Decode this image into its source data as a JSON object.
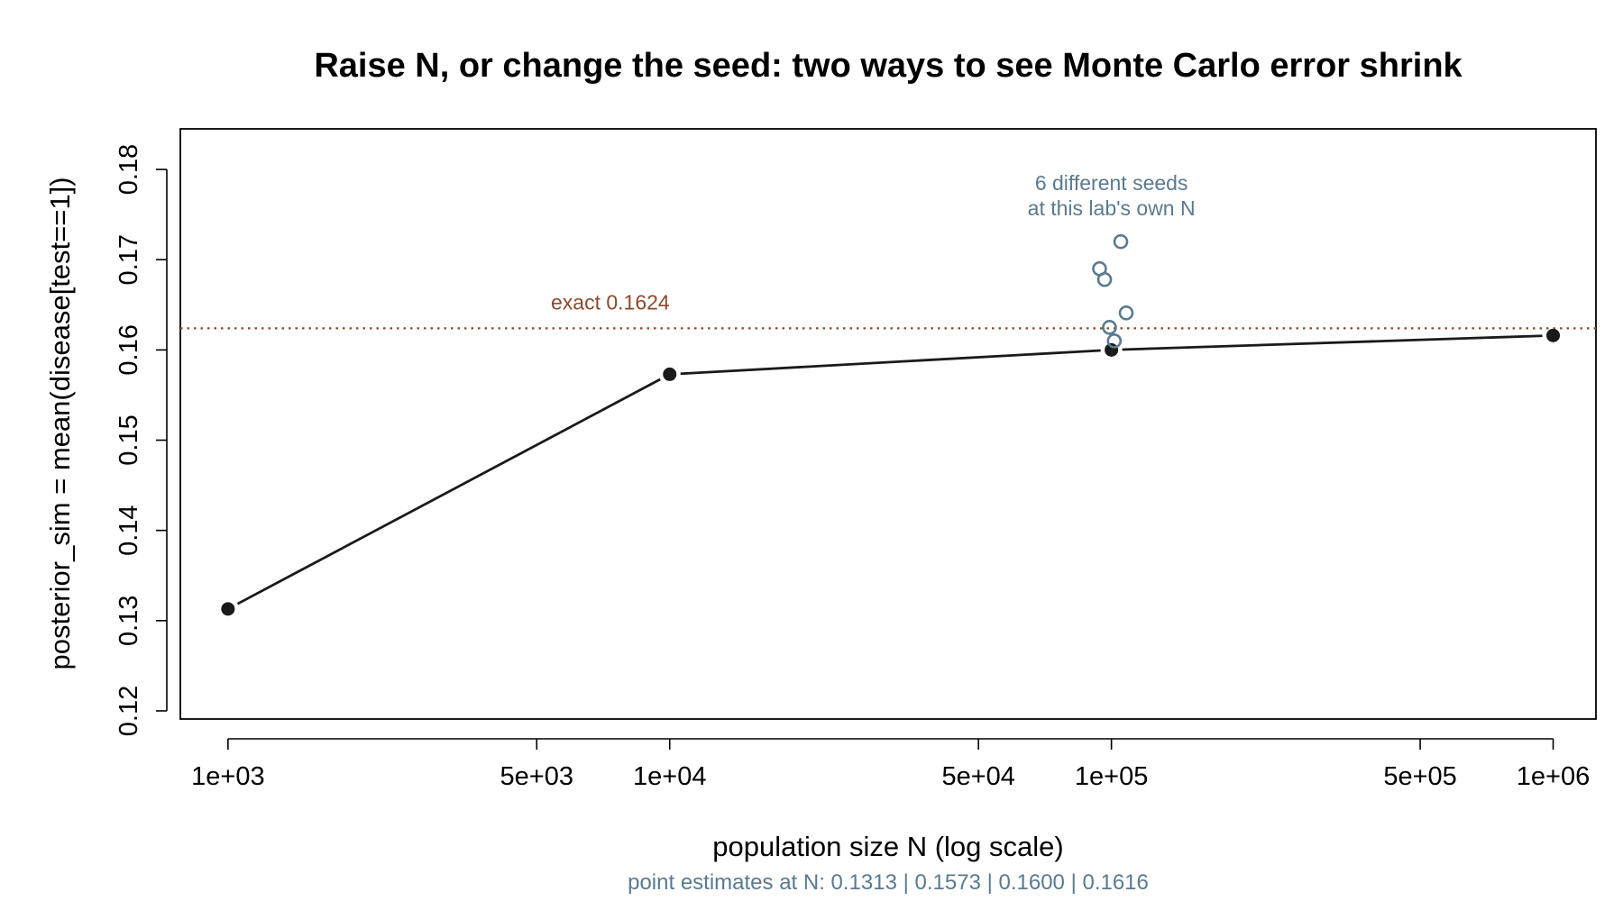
{
  "chart_data": {
    "type": "line",
    "title": "Raise N, or change the seed: two ways to see Monte Carlo error shrink",
    "xlabel": "population size N (log scale)",
    "ylabel": "posterior_sim = mean(disease[test==1])",
    "x_scale": "log",
    "xlim": [
      780,
      1250000
    ],
    "ylim": [
      0.1191,
      0.1845
    ],
    "x_ticks": [
      1000,
      5000,
      10000,
      50000,
      100000,
      500000,
      1000000
    ],
    "x_tick_labels": [
      "1e+03",
      "5e+03",
      "1e+04",
      "5e+04",
      "1e+05",
      "5e+05",
      "1e+06"
    ],
    "y_ticks": [
      0.12,
      0.13,
      0.14,
      0.15,
      0.16,
      0.17,
      0.18
    ],
    "y_tick_labels": [
      "0.12",
      "0.13",
      "0.14",
      "0.15",
      "0.16",
      "0.17",
      "0.18"
    ],
    "grid": false,
    "series": [
      {
        "style": "line-with-filled-points",
        "color": "#1a1a1a",
        "points": [
          {
            "x": 1000,
            "y": 0.1313
          },
          {
            "x": 10000,
            "y": 0.1573
          },
          {
            "x": 100000,
            "y": 0.16
          },
          {
            "x": 1000000,
            "y": 0.1616
          }
        ]
      },
      {
        "style": "open-points",
        "color": "#5b7a8f",
        "points": [
          {
            "x": 94000,
            "y": 0.169
          },
          {
            "x": 96500,
            "y": 0.1678
          },
          {
            "x": 99000,
            "y": 0.1625
          },
          {
            "x": 101500,
            "y": 0.161
          },
          {
            "x": 105000,
            "y": 0.172
          },
          {
            "x": 108000,
            "y": 0.1641
          }
        ]
      }
    ],
    "reference_line": {
      "y": 0.1624,
      "label": "exact 0.1624",
      "color": "#8b4a2b",
      "style": "dotted",
      "label_x": 10000
    },
    "annotations": [
      {
        "lines": [
          "6 different seeds",
          "at this lab's own N"
        ],
        "x": 100000,
        "y": 0.1777,
        "color": "#5b7a8f"
      }
    ],
    "footer": {
      "text": "point estimates at N: 0.1313  |  0.1573  |  0.1600  |  0.1616",
      "color": "#5b7a8f"
    }
  }
}
